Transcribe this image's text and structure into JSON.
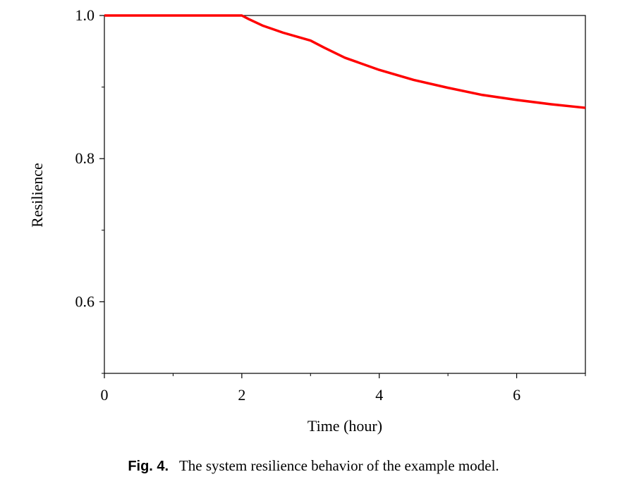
{
  "caption": {
    "label": "Fig. 4.",
    "text": "The system resilience behavior of the example model."
  },
  "chart_data": {
    "type": "line",
    "title": "",
    "xlabel": "Time (hour)",
    "ylabel": "Resilience",
    "xlim": [
      0,
      7
    ],
    "ylim": [
      0.5,
      1.0
    ],
    "x_ticks": [
      0,
      2,
      4,
      6
    ],
    "x_tick_labels": [
      "0",
      "2",
      "4",
      "6"
    ],
    "y_ticks": [
      0.6,
      0.8,
      1.0
    ],
    "y_tick_labels": [
      "0.6",
      "0.8",
      "1.0"
    ],
    "grid": false,
    "series": [
      {
        "color": "#ff0000",
        "x": [
          0,
          1,
          2,
          2.1,
          2.3,
          2.6,
          3.0,
          3.2,
          3.5,
          4.0,
          4.5,
          5.0,
          5.5,
          6.0,
          6.5,
          7.0
        ],
        "y": [
          1.0,
          1.0,
          1.0,
          0.995,
          0.986,
          0.976,
          0.965,
          0.955,
          0.941,
          0.924,
          0.91,
          0.899,
          0.889,
          0.882,
          0.876,
          0.871
        ]
      }
    ]
  }
}
